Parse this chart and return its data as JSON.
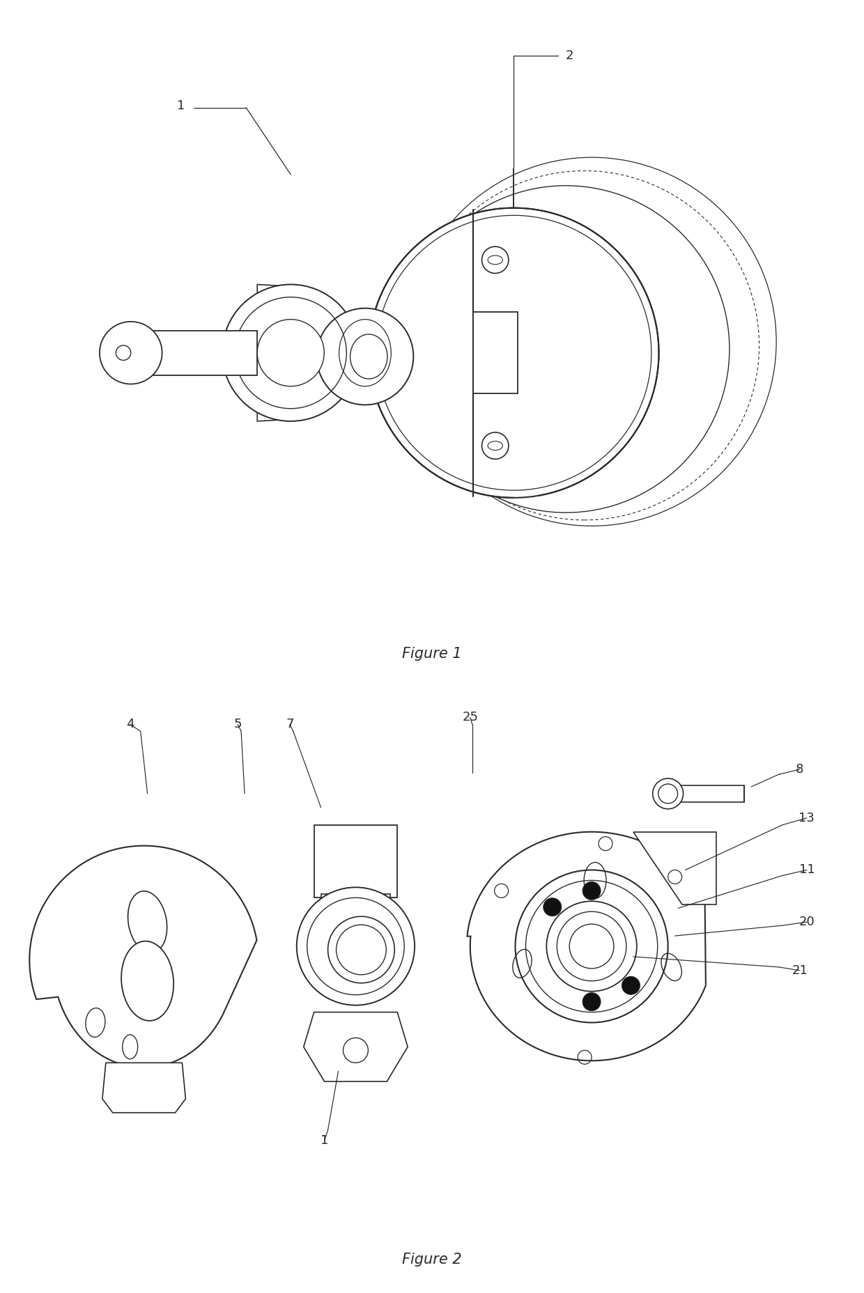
{
  "fig1_caption": "Figure 1",
  "fig2_caption": "Figure 2",
  "line_color": "#2a2a2a",
  "bg_color": "#ffffff",
  "lw_main": 1.4,
  "lw_thin": 0.9,
  "caption_fontsize": 15,
  "label_fontsize": 13
}
